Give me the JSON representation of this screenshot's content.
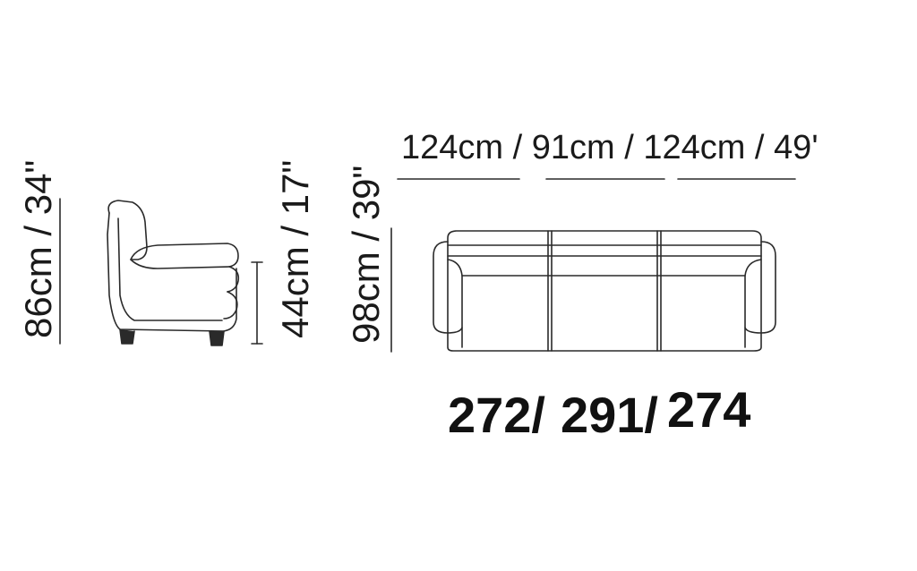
{
  "side_view": {
    "total_height_label": "86cm / 34\"",
    "seat_height_label": "44cm / 17\""
  },
  "front_view": {
    "depth_label": "98cm / 39\"",
    "widths_label": "124cm / 91cm / 124cm / 49'"
  },
  "model_codes": [
    "272/",
    "291/",
    "274"
  ]
}
